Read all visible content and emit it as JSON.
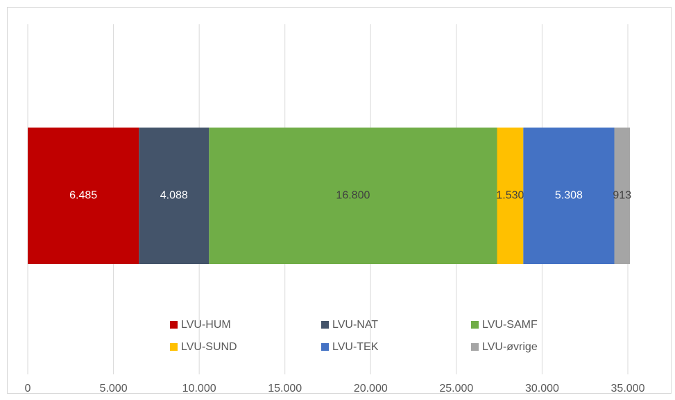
{
  "chart_data": {
    "type": "stacked-barh",
    "categories": [
      null
    ],
    "series": [
      {
        "name": "LVU-HUM",
        "color": "#c00000",
        "values": [
          6485
        ],
        "value_labels": [
          "6.485"
        ]
      },
      {
        "name": "LVU-NAT",
        "color": "#44546a",
        "values": [
          4088
        ],
        "value_labels": [
          "4.088"
        ]
      },
      {
        "name": "LVU-SAMF",
        "color": "#70ad47",
        "values": [
          16800
        ],
        "value_labels": [
          "16.800"
        ]
      },
      {
        "name": "LVU-SUND",
        "color": "#ffc000",
        "values": [
          1530
        ],
        "value_labels": [
          "1.530"
        ]
      },
      {
        "name": "LVU-TEK",
        "color": "#4472c4",
        "values": [
          5308
        ],
        "value_labels": [
          "5.308"
        ]
      },
      {
        "name": "LVU-øvrige",
        "color": "#a5a5a5",
        "values": [
          913
        ],
        "value_labels": [
          "913"
        ]
      }
    ],
    "xlim": [
      0,
      35000
    ],
    "xticks": [
      0,
      {
        "value": 5000,
        "label": "5.000"
      },
      {
        "value": 10000,
        "label": "10.000"
      },
      {
        "value": 15000,
        "label": "15.000"
      },
      {
        "value": 20000,
        "label": "20.000"
      },
      {
        "value": 25000,
        "label": "25.000"
      },
      {
        "value": 30000,
        "label": "30.000"
      },
      {
        "value": 35000,
        "label": "35.000"
      }
    ],
    "grid": true,
    "legend": "bottom"
  }
}
